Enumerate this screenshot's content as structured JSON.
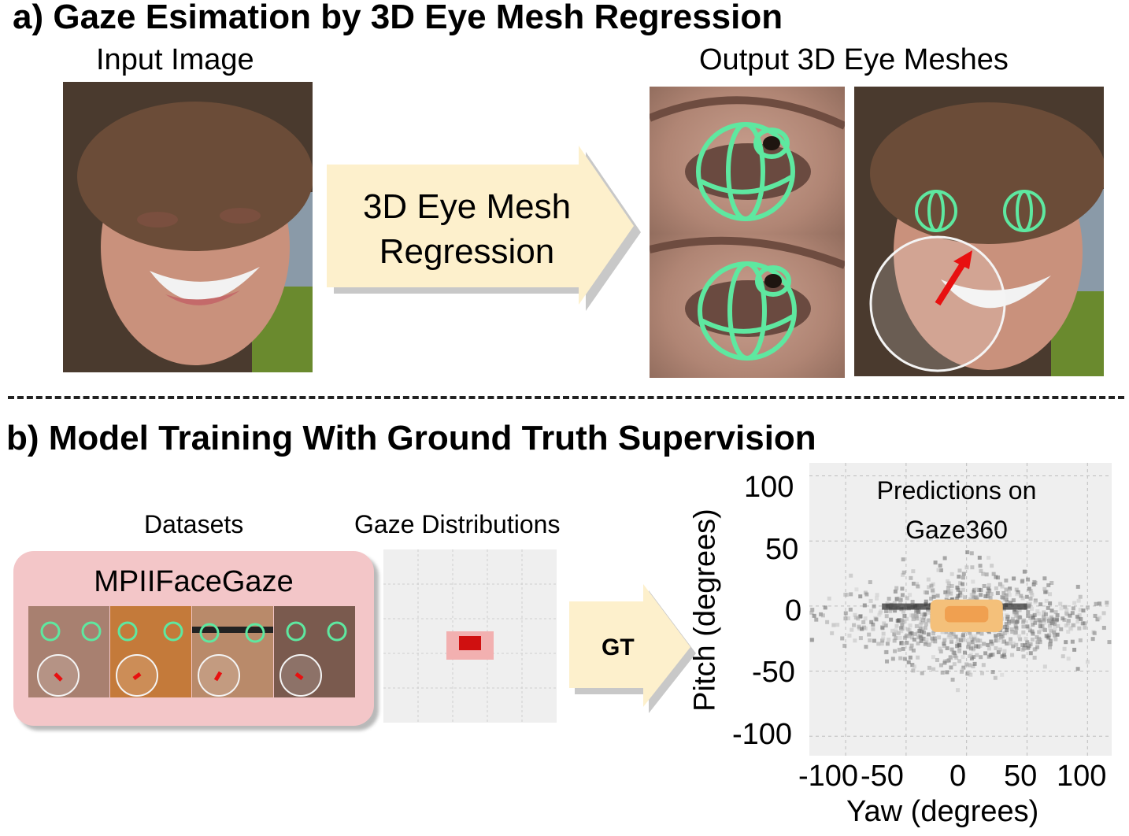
{
  "section_a": {
    "title": "a) Gaze Esimation by 3D Eye Mesh Regression",
    "input_label": "Input Image",
    "output_label": "Output 3D Eye Meshes",
    "arrow_line1": "3D Eye Mesh",
    "arrow_line2": "Regression"
  },
  "section_b": {
    "title": "b) Model Training With Ground Truth Supervision",
    "datasets_label": "Datasets",
    "distributions_label": "Gaze Distributions",
    "dataset_name": "MPIIFaceGaze",
    "arrow_label": "GT"
  },
  "chart_data": {
    "type": "heatmap",
    "title": "Predictions on Gaze360",
    "xlabel": "Yaw (degrees)",
    "ylabel": "Pitch (degrees)",
    "x_ticks": [
      "-100",
      "-50",
      "0",
      "50",
      "100"
    ],
    "y_ticks": [
      "100",
      "50",
      "0",
      "-50",
      "-100"
    ],
    "xlim": [
      -130,
      120
    ],
    "ylim": [
      -115,
      110
    ],
    "grid": true,
    "series": [
      {
        "name": "Predictions (Gaze360)",
        "color": "#6e6e6e",
        "center": [
          0,
          -10
        ],
        "yaw_spread": 120,
        "pitch_spread": 45
      },
      {
        "name": "Ground truth (MPIIFaceGaze)",
        "color": "#f0a050",
        "center": [
          0,
          -5
        ],
        "yaw_range": [
          -30,
          30
        ],
        "pitch_range": [
          -20,
          5
        ]
      }
    ]
  },
  "colors": {
    "mesh_green": "#5ee8a0",
    "arrow_fill": "#fdf0cc",
    "dataset_box": "#f3c6c8",
    "gaze_red": "#e81010"
  }
}
